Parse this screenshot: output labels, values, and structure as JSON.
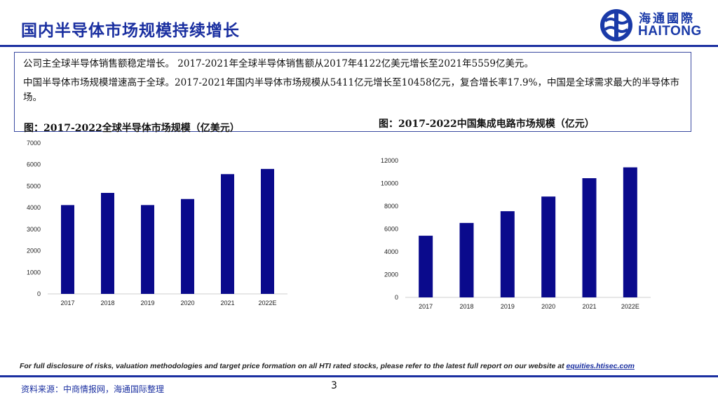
{
  "header": {
    "title": "国内半导体市场规模持续增长",
    "logo_cn": "海通國際",
    "logo_en": "HAITONG"
  },
  "summary": {
    "line1": "公司主全球半导体销售额稳定增长。 2017-2021年全球半导体销售额从2017年4122亿美元增长至2021年5559亿美元。",
    "line2": "中国半导体市场规模增速高于全球。2017-2021年国内半导体市场规模从5411亿元增长至10458亿元，复合增长率17.9%，中国是全球需求最大的半导体市场。"
  },
  "chart_data": [
    {
      "type": "bar",
      "title": "图：2017-2022全球半导体市场规模（亿美元）",
      "categories": [
        "2017",
        "2018",
        "2019",
        "2020",
        "2021",
        "2022E"
      ],
      "values": [
        4122,
        4688,
        4123,
        4404,
        5559,
        5800
      ],
      "yticks": [
        0,
        1000,
        2000,
        3000,
        4000,
        5000,
        6000,
        7000
      ],
      "ylim": [
        0,
        7000
      ],
      "color": "#0a0a8c"
    },
    {
      "type": "bar",
      "title": "图：2017-2022中国集成电路市场规模（亿元）",
      "categories": [
        "2017",
        "2018",
        "2019",
        "2020",
        "2021",
        "2022E"
      ],
      "values": [
        5411,
        6532,
        7562,
        8848,
        10458,
        11410
      ],
      "yticks": [
        0,
        2000,
        4000,
        6000,
        8000,
        10000,
        12000
      ],
      "ylim": [
        0,
        12000
      ],
      "color": "#0a0a8c"
    }
  ],
  "footer": {
    "disclaimer": "For full disclosure of risks, valuation methodologies and target price formation on all HTI rated stocks, please refer to the latest full report on our website at",
    "link": "equities.htisec.com",
    "source": "资料来源：中商情报网，海通国际整理",
    "page": "3"
  }
}
